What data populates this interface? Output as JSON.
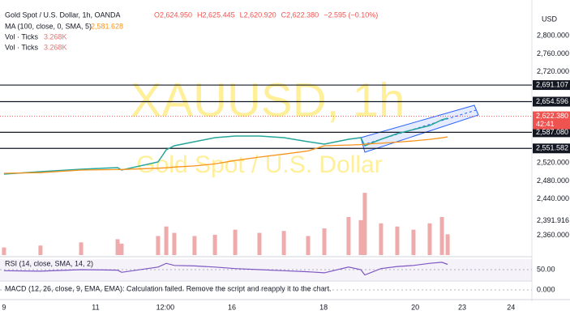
{
  "chart_data": [
    {
      "type": "line",
      "title": "Gold Spot / U.S. Dollar, 1h, OANDA",
      "watermark": "XAUUSD, 1h",
      "watermark_subtitle": "Gold Spot / U.S. Dollar",
      "ohlc_labels": [
        "O2,624.950",
        "H2,625.445",
        "L2,620.920",
        "C2,622.380",
        "−2.595 (−0.10%)"
      ],
      "currency": "USD",
      "x": [
        0,
        19.1,
        40.4,
        59.5,
        61.6,
        80.7,
        85.0,
        89.2,
        99.8,
        110.5,
        121.1,
        133.8,
        146.6,
        159.3,
        167.8,
        180.5,
        186.9,
        189.0,
        197.5,
        206.0,
        214.5,
        223.0,
        229.4,
        232.4
      ],
      "series": [
        {
          "name": "Gold Spot / U.S. Dollar",
          "color": "#26a69a",
          "values": [
            2495.0,
            2500.4,
            2505.7,
            2509.3,
            2503.9,
            2521.8,
            2548.5,
            2557.4,
            2566.4,
            2575.3,
            2578.8,
            2578.8,
            2575.3,
            2566.4,
            2561.0,
            2571.7,
            2575.3,
            2557.4,
            2571.7,
            2584.2,
            2593.1,
            2602.0,
            2614.5,
            2618.1
          ]
        },
        {
          "name": "MA (100, close, 0, SMA, 5)",
          "color": "#f7931a",
          "last_label": "2,581.628",
          "values": [
            2496.8,
            2498.2,
            2503.9,
            2505.0,
            2505.2,
            2508.0,
            2509.0,
            2510.5,
            2513.0,
            2517.5,
            2525.0,
            2532.5,
            2539.0,
            2546.0,
            2557.4,
            2559.0,
            2560.0,
            2561.0,
            2563.0,
            2565.5,
            2568.1,
            2571.5,
            2575.0,
            2577.0
          ]
        }
      ],
      "xlim": [
        -2.1,
        276.1
      ],
      "xticks": [
        {
          "value": 0,
          "label": "9"
        },
        {
          "value": 48,
          "label": "11"
        },
        {
          "value": 84.5,
          "label": "12:00"
        },
        {
          "value": 119.4,
          "label": "16"
        },
        {
          "value": 167.4,
          "label": "18"
        },
        {
          "value": 215.4,
          "label": "20"
        },
        {
          "value": 240,
          "label": "23"
        },
        {
          "value": 265.6,
          "label": "24"
        }
      ],
      "ylim": [
        2316.7,
        2860.6
      ],
      "yticks": [
        {
          "value": 2800,
          "label": "2,800.000"
        },
        {
          "value": 2760,
          "label": "2,760.000"
        },
        {
          "value": 2720,
          "label": "2,720.000"
        },
        {
          "value": 2520,
          "label": "2,520.000"
        },
        {
          "value": 2480,
          "label": "2,480.000"
        },
        {
          "value": 2440,
          "label": "2,440.000"
        },
        {
          "value": 2360,
          "label": "2,360.000"
        }
      ],
      "levels": [
        {
          "value": 2691.107,
          "label": "2,691.107"
        },
        {
          "value": 2654.596,
          "label": "2,654.596"
        },
        {
          "value": 2587.08,
          "label": "2,587.080"
        },
        {
          "value": 2551.582,
          "label": "2,551.582"
        }
      ],
      "current_price": {
        "value": 2622.38,
        "label": "2,622.380",
        "countdown": "42:41"
      },
      "plain_labels": [
        {
          "value": 2391.916,
          "label": "2,391.916"
        }
      ]
    },
    {
      "type": "bar",
      "name": "Vol · Ticks",
      "last_label": "3.268K",
      "color": "#e57373",
      "ylim": [
        0,
        10.2
      ],
      "values": [
        1.2,
        1.5,
        2.0,
        2.5,
        1.8,
        3.0,
        4.5,
        3.5,
        3.0,
        3.2,
        4.0,
        3.5,
        3.8,
        3.0,
        4.2,
        6.0,
        5.5,
        9.8,
        5.0,
        4.5,
        4.0,
        5.0,
        6.0,
        3.268
      ]
    },
    {
      "type": "line",
      "title": "RSI (14, close, SMA, 14, 2)",
      "color": "#7e57c2",
      "ylim": [
        30,
        70
      ],
      "yticks": [
        {
          "value": 50,
          "label": "50.00"
        }
      ],
      "values": [
        48,
        47,
        50,
        49,
        45,
        55,
        62,
        58,
        57,
        55,
        52,
        50,
        48,
        46,
        44,
        55,
        50,
        40,
        52,
        56,
        58,
        62,
        64,
        60
      ]
    },
    {
      "type": "line",
      "title": "MACD (12, 26, close, 9, EMA, EMA): Calculation failed. Remove the script and reapply it to the chart.",
      "ylim": [
        -1,
        1
      ],
      "yticks": [
        {
          "value": 0,
          "label": "0.000"
        }
      ]
    }
  ]
}
